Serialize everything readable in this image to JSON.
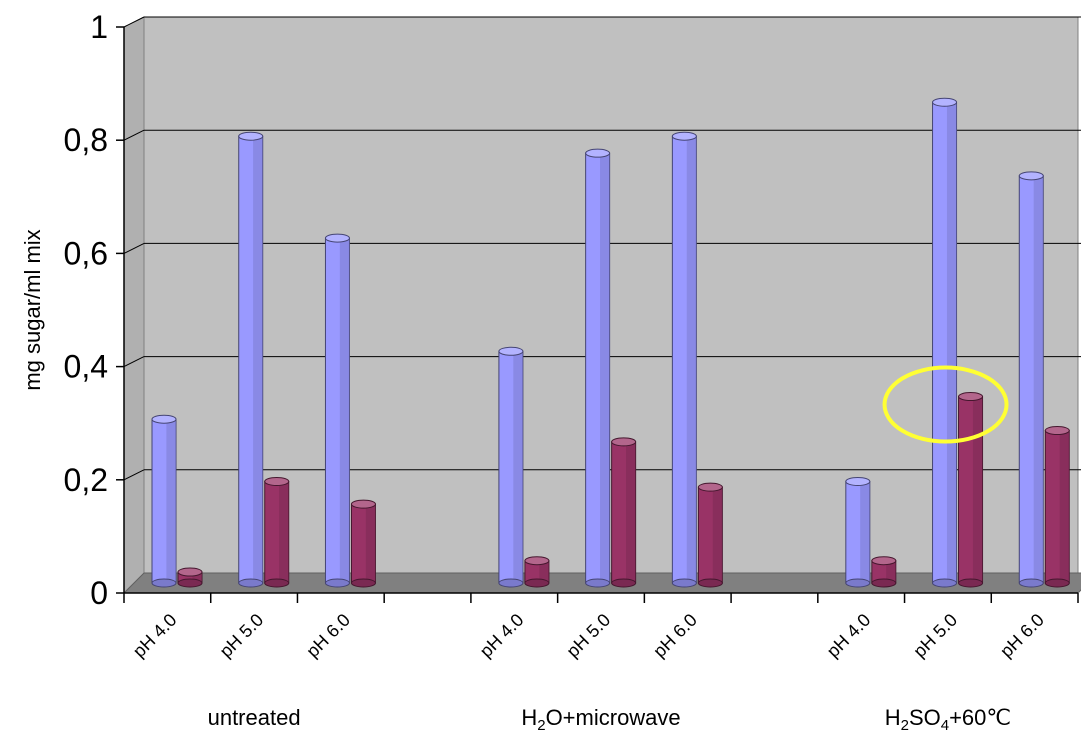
{
  "chart_data": {
    "type": "bar",
    "ylabel": "mg sugar/ml mix",
    "ylim": [
      0,
      1
    ],
    "yticks": [
      "0",
      "0,2",
      "0,4",
      "0,6",
      "0,8",
      "1"
    ],
    "groups": [
      {
        "label": "untreated",
        "categories": [
          "pH 4.0",
          "pH 5.0",
          "pH 6.0"
        ]
      },
      {
        "label_parts": [
          "H",
          "2",
          "O+microwave"
        ],
        "categories": [
          "pH 4.0",
          "pH 5.0",
          "pH 6.0"
        ]
      },
      {
        "label_parts": [
          "H",
          "2",
          "SO",
          "4",
          "+60℃"
        ],
        "categories": [
          "pH 4.0",
          "pH 5.0",
          "pH 6.0"
        ]
      }
    ],
    "series": [
      {
        "color": "#9999ff",
        "values": [
          0.3,
          0.8,
          0.62,
          0.42,
          0.77,
          0.8,
          0.19,
          0.86,
          0.73
        ]
      },
      {
        "color": "#993366",
        "values": [
          0.03,
          0.19,
          0.15,
          0.05,
          0.26,
          0.18,
          0.05,
          0.34,
          0.28
        ]
      }
    ],
    "highlight": {
      "shape": "ellipse",
      "color": "#ffff33",
      "category": "H2SO4+60℃ pH 5.0"
    },
    "grid": true,
    "three_d": true
  }
}
